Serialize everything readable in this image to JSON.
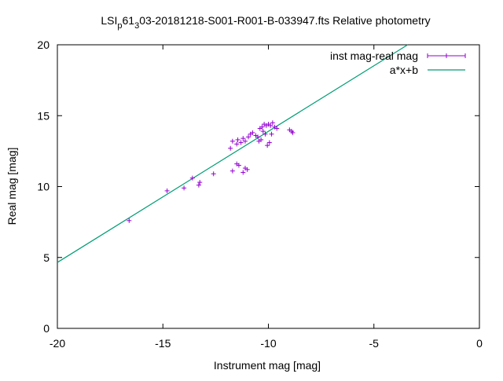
{
  "chart_data": {
    "type": "scatter",
    "title_parts": {
      "prefix": "LSI",
      "sub1": "p",
      "mid": "61",
      "sub2": "3",
      "suffix": "03-20181218-S001-R001-B-033947.fts Relative photometry"
    },
    "xlabel": "Instrument mag [mag]",
    "ylabel": "Real mag [mag]",
    "xlim": [
      -20,
      0
    ],
    "ylim": [
      0,
      20
    ],
    "xticks": [
      -20,
      -15,
      -10,
      -5,
      0
    ],
    "yticks": [
      0,
      5,
      10,
      15,
      20
    ],
    "grid": false,
    "legend_position": "top-right",
    "colors": {
      "points": "#9400d3",
      "fit": "#009e73"
    },
    "series": [
      {
        "name": "inst mag-real mag",
        "kind": "errorbars",
        "points": [
          [
            -16.6,
            7.6
          ],
          [
            -14.8,
            9.7
          ],
          [
            -14.0,
            9.9
          ],
          [
            -13.6,
            10.6
          ],
          [
            -13.3,
            10.1
          ],
          [
            -13.25,
            10.3
          ],
          [
            -12.6,
            10.9
          ],
          [
            -11.7,
            11.1
          ],
          [
            -11.5,
            11.6
          ],
          [
            -11.4,
            11.5
          ],
          [
            -11.2,
            11.0
          ],
          [
            -11.1,
            11.3
          ],
          [
            -11.0,
            11.2
          ],
          [
            -11.8,
            12.7
          ],
          [
            -11.7,
            13.2
          ],
          [
            -11.5,
            13.0
          ],
          [
            -11.45,
            13.3
          ],
          [
            -11.3,
            13.1
          ],
          [
            -11.2,
            13.4
          ],
          [
            -11.1,
            13.2
          ],
          [
            -10.95,
            13.5
          ],
          [
            -10.85,
            13.7
          ],
          [
            -10.75,
            13.8
          ],
          [
            -10.6,
            13.6
          ],
          [
            -10.5,
            13.5
          ],
          [
            -10.45,
            13.2
          ],
          [
            -10.4,
            14.1
          ],
          [
            -10.35,
            13.3
          ],
          [
            -10.3,
            14.2
          ],
          [
            -10.25,
            13.9
          ],
          [
            -10.2,
            14.4
          ],
          [
            -10.15,
            13.7
          ],
          [
            -10.1,
            14.3
          ],
          [
            -10.05,
            12.9
          ],
          [
            -10.0,
            14.4
          ],
          [
            -9.95,
            13.1
          ],
          [
            -9.9,
            14.3
          ],
          [
            -9.85,
            13.7
          ],
          [
            -9.8,
            14.5
          ],
          [
            -9.7,
            14.2
          ],
          [
            -9.6,
            14.1
          ],
          [
            -9.0,
            14.0
          ],
          [
            -8.9,
            13.9
          ],
          [
            -8.85,
            13.8
          ]
        ]
      },
      {
        "name": "a*x+b",
        "kind": "line",
        "x": [
          -20,
          -3.4
        ],
        "y": [
          4.65,
          20.0
        ]
      }
    ]
  }
}
